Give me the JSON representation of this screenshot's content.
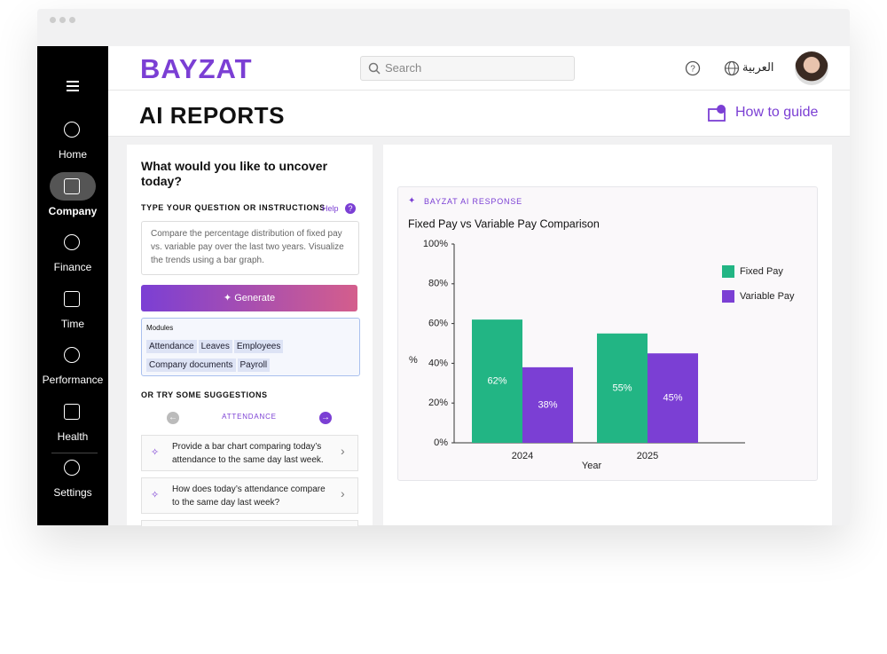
{
  "app": {
    "brand": "BAYZAT",
    "search_placeholder": "Search",
    "language": "العربية"
  },
  "sidebar": {
    "items": [
      "Home",
      "Company",
      "Finance",
      "Time",
      "Performance",
      "Health",
      "Settings"
    ]
  },
  "page": {
    "title": "AI REPORTS",
    "how_to": "How to guide"
  },
  "prompt_panel": {
    "heading": "What would you like to uncover today?",
    "input_label": "TYPE YOUR QUESTION OR INSTRUCTIONS",
    "help": "Help",
    "prompt": "Compare the percentage distribution of fixed pay vs. variable pay over the last two years. Visualize the trends using a bar graph.",
    "button": "Generate",
    "modules_label": "Modules",
    "modules": [
      "Attendance",
      "Leaves",
      "Employees",
      "Company documents",
      "Payroll"
    ],
    "suggestions_label": "OR TRY SOME SUGGESTIONS",
    "suggestion_category": "ATTENDANCE",
    "suggestions": [
      "Provide a bar chart comparing today’s attendance to the same day last week.",
      "How does today’s attendance compare to the same day last week?"
    ]
  },
  "response_panel": {
    "label": "BAYZAT AI RESPONSE"
  },
  "chart_data": {
    "type": "bar",
    "title": "Fixed Pay vs Variable Pay Comparison",
    "x_label": "Year",
    "y_label": "%",
    "categories": [
      "2024",
      "2025"
    ],
    "series": [
      {
        "name": "Fixed Pay",
        "color": "#22b584",
        "values": [
          62,
          55
        ],
        "value_labels": [
          "62%",
          "55%"
        ]
      },
      {
        "name": "Variable Pay",
        "color": "#7b3fd4",
        "values": [
          38,
          45
        ],
        "value_labels": [
          "38%",
          "45%"
        ]
      }
    ],
    "ylim": [
      0,
      100
    ],
    "yticks": [
      {
        "value": 0,
        "label": "0%"
      },
      {
        "value": 20,
        "label": "20%"
      },
      {
        "value": 40,
        "label": "40%"
      },
      {
        "value": 60,
        "label": "60%"
      },
      {
        "value": 80,
        "label": "80%"
      },
      {
        "value": 100,
        "label": "100%"
      }
    ],
    "grid": false,
    "legend": "right"
  }
}
